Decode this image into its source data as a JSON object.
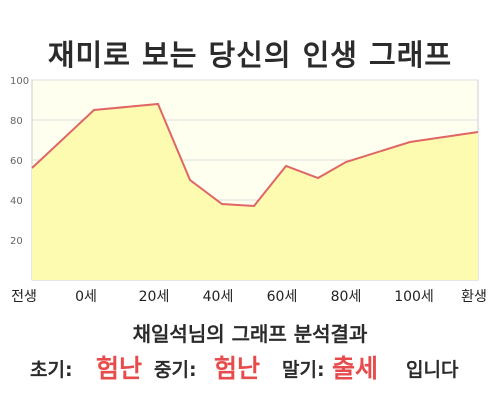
{
  "title": "재미로 보는 당신의 인생 그래프",
  "chart_data": {
    "type": "area",
    "x_categories": [
      "전생",
      "0세",
      "20세",
      "40세",
      "60세",
      "80세",
      "100세",
      "환생"
    ],
    "y_ticks": [
      20,
      40,
      60,
      80,
      100
    ],
    "ylim": [
      0,
      100
    ],
    "grid": true,
    "series": [
      {
        "points": [
          {
            "x": "전생",
            "y": 56
          },
          {
            "x": "0세",
            "y": 85
          },
          {
            "x": "20세",
            "y": 88
          },
          {
            "x": "30세",
            "y": 50
          },
          {
            "x": "40세",
            "y": 38
          },
          {
            "x": "50세",
            "y": 37
          },
          {
            "x": "60세",
            "y": 57
          },
          {
            "x": "70세",
            "y": 51
          },
          {
            "x": "80세",
            "y": 59
          },
          {
            "x": "100세",
            "y": 69
          },
          {
            "x": "환생",
            "y": 74
          }
        ]
      }
    ],
    "colors": {
      "line": "#e06666",
      "fill": "#fdfbb0",
      "plot_bg": "#fffff0",
      "grid": "#dddddd"
    }
  },
  "result": {
    "heading": "채일석님의 그래프 분석결과",
    "early_label": "초기:",
    "early_value": "험난",
    "middle_label": "중기:",
    "middle_value": "험난",
    "late_label": "말기:",
    "late_value": "출세",
    "ending": "입니다"
  }
}
